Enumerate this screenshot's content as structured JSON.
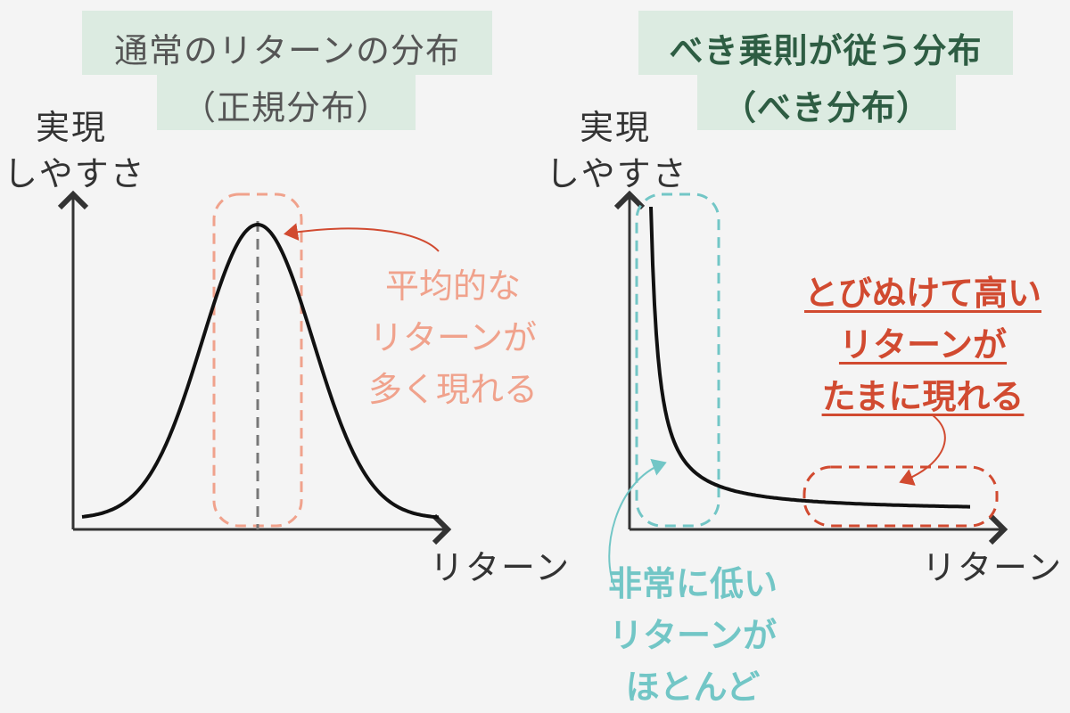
{
  "left_panel": {
    "title_line1": "通常のリターンの分布",
    "title_line2": "（正規分布）",
    "ylabel_line1": "実現",
    "ylabel_line2": "しやすさ",
    "xlabel": "リターン",
    "annotation": [
      "平均的な",
      "リターンが",
      "多く現れる"
    ]
  },
  "right_panel": {
    "title_line1": "べき乗則が従う分布",
    "title_line2": "（べき分布）",
    "ylabel_line1": "実現",
    "ylabel_line2": "しやすさ",
    "xlabel": "リターン",
    "annotation_tail": [
      "とびぬけて高い",
      "リターンが",
      "たまに現れる"
    ],
    "annotation_head": [
      "非常に低い",
      "リターンが",
      "ほとんど"
    ]
  },
  "colors": {
    "background": "#f4f4f4",
    "title_box": "#dcebe1",
    "title_right_text": "#2e5d43",
    "peach": "#f0a28c",
    "red": "#d14a30",
    "teal": "#72c6c6",
    "curve": "#111111"
  }
}
